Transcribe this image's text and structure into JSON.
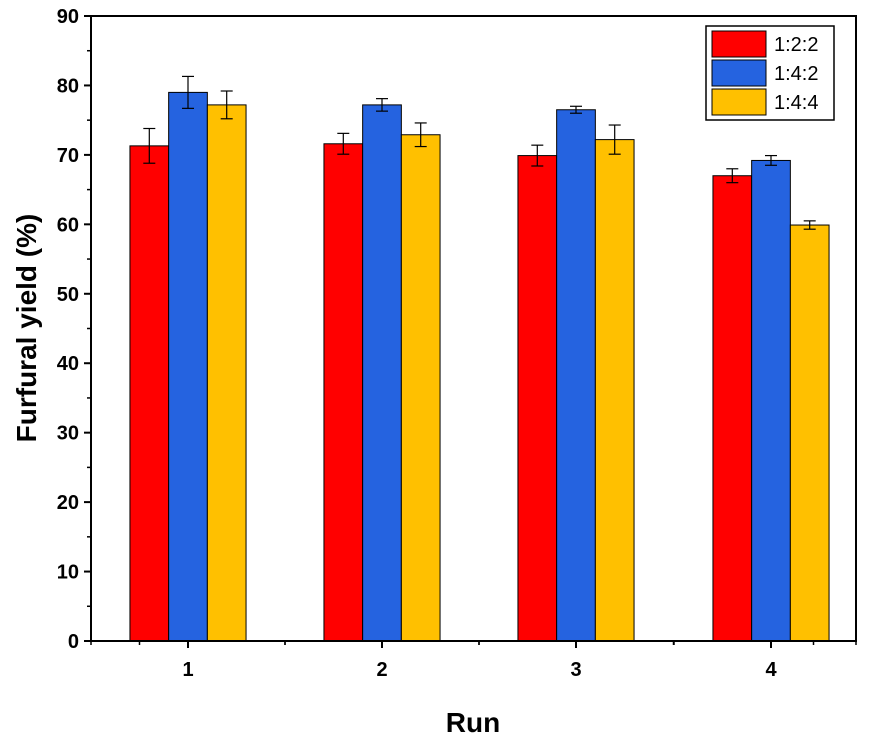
{
  "chart_data": {
    "type": "bar",
    "categories": [
      "1",
      "2",
      "3",
      "4"
    ],
    "series": [
      {
        "name": "1:2:2",
        "color": "#ff0000",
        "values": [
          71.3,
          71.6,
          69.9,
          67.0
        ],
        "errors": [
          2.5,
          1.5,
          1.5,
          1.0
        ]
      },
      {
        "name": "1:4:2",
        "color": "#2563e0",
        "values": [
          79.0,
          77.2,
          76.5,
          69.2
        ],
        "errors": [
          2.3,
          0.9,
          0.5,
          0.7
        ]
      },
      {
        "name": "1:4:4",
        "color": "#ffc000",
        "values": [
          77.2,
          72.9,
          72.2,
          59.9
        ],
        "errors": [
          2.0,
          1.7,
          2.1,
          0.6
        ]
      }
    ],
    "xlabel": "Run",
    "ylabel": "Furfural yield (%)",
    "ylim": [
      0,
      90
    ],
    "yticks": [
      0,
      10,
      20,
      30,
      40,
      50,
      60,
      70,
      80,
      90
    ],
    "grid": false,
    "legend_position": "top-right"
  }
}
